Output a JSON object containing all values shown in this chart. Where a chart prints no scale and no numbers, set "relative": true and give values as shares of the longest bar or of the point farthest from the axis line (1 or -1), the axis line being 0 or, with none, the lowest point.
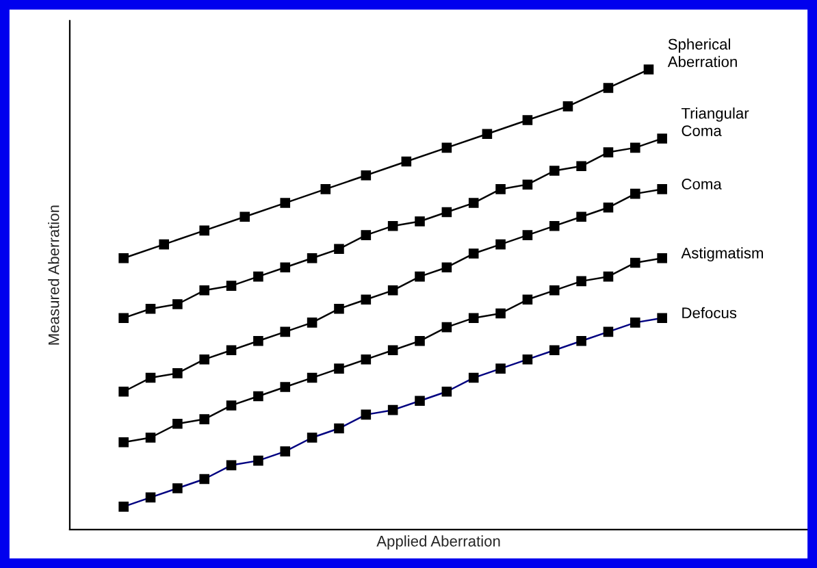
{
  "chart_data": {
    "type": "line",
    "xlabel": "Applied Aberration",
    "ylabel": "Measured Aberration",
    "relative": true,
    "marker": "square",
    "line_style": "solid",
    "legend": false,
    "categories": [
      null,
      null,
      null,
      null,
      null,
      null,
      null,
      null,
      null,
      null,
      null,
      null,
      null,
      null,
      null,
      null,
      null,
      null,
      null,
      null,
      null,
      null,
      null,
      null,
      null,
      null,
      null,
      null,
      null,
      null,
      null,
      null,
      null,
      null,
      null,
      null,
      null,
      null,
      null,
      null,
      null
    ],
    "series": [
      {
        "name": "Spherical Aberration",
        "color": "#000000",
        "values": [
          0.59,
          null,
          null,
          0.62,
          null,
          null,
          0.65,
          null,
          null,
          0.68,
          null,
          null,
          0.71,
          null,
          null,
          0.74,
          null,
          null,
          0.77,
          null,
          null,
          0.8,
          null,
          null,
          0.83,
          null,
          null,
          0.86,
          null,
          null,
          0.89,
          null,
          null,
          0.92,
          null,
          null,
          0.96,
          null,
          null,
          1.0,
          null
        ]
      },
      {
        "name": "Triangular Coma",
        "color": "#000000",
        "values": [
          0.46,
          null,
          0.48,
          null,
          0.49,
          null,
          0.52,
          null,
          0.53,
          null,
          0.55,
          null,
          0.57,
          null,
          0.59,
          null,
          0.61,
          null,
          0.64,
          null,
          0.66,
          null,
          0.67,
          null,
          0.69,
          null,
          0.71,
          null,
          0.74,
          null,
          0.75,
          null,
          0.78,
          null,
          0.79,
          null,
          0.82,
          null,
          0.83,
          null,
          0.85
        ]
      },
      {
        "name": "Coma",
        "color": "#000000",
        "values": [
          0.3,
          null,
          0.33,
          null,
          0.34,
          null,
          0.37,
          null,
          0.39,
          null,
          0.41,
          null,
          0.43,
          null,
          0.45,
          null,
          0.48,
          null,
          0.5,
          null,
          0.52,
          null,
          0.55,
          null,
          0.57,
          null,
          0.6,
          null,
          0.62,
          null,
          0.64,
          null,
          0.66,
          null,
          0.68,
          null,
          0.7,
          null,
          0.73,
          null,
          0.74
        ]
      },
      {
        "name": "Astigmatism",
        "color": "#000000",
        "values": [
          0.19,
          null,
          0.2,
          null,
          0.23,
          null,
          0.24,
          null,
          0.27,
          null,
          0.29,
          null,
          0.31,
          null,
          0.33,
          null,
          0.35,
          null,
          0.37,
          null,
          0.39,
          null,
          0.41,
          null,
          0.44,
          null,
          0.46,
          null,
          0.47,
          null,
          0.5,
          null,
          0.52,
          null,
          0.54,
          null,
          0.55,
          null,
          0.58,
          null,
          0.59
        ]
      },
      {
        "name": "Defocus",
        "color": "#000080",
        "values": [
          0.05,
          null,
          0.07,
          null,
          0.09,
          null,
          0.11,
          null,
          0.14,
          null,
          0.15,
          null,
          0.17,
          null,
          0.2,
          null,
          0.22,
          null,
          0.25,
          null,
          0.26,
          null,
          0.28,
          null,
          0.3,
          null,
          0.33,
          null,
          0.35,
          null,
          0.37,
          null,
          0.39,
          null,
          0.41,
          null,
          0.43,
          null,
          0.45,
          null,
          0.46
        ]
      }
    ]
  }
}
